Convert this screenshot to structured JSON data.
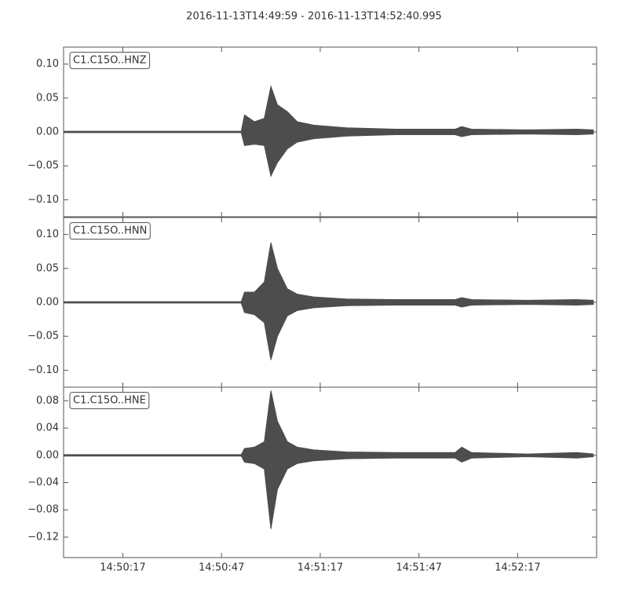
{
  "chart_data": [
    {
      "type": "band",
      "title": "2016-11-13T14:49:59  -  2016-11-13T14:52:40.995",
      "label": "C1.C15O..HNZ",
      "color": "#4d4d4d",
      "xlim": [
        "14:49:59",
        "14:52:40.995"
      ],
      "x": [
        "14:49:59",
        "14:50:30",
        "14:50:53",
        "14:50:54",
        "14:50:57",
        "14:51:00",
        "14:51:02",
        "14:51:04",
        "14:51:07",
        "14:51:10",
        "14:51:15",
        "14:51:25",
        "14:51:40",
        "14:51:58",
        "14:52:00",
        "14:52:03",
        "14:52:20",
        "14:52:35",
        "14:52:40"
      ],
      "upper": [
        0.001,
        0.001,
        0.001,
        0.025,
        0.015,
        0.02,
        0.067,
        0.04,
        0.03,
        0.015,
        0.01,
        0.006,
        0.004,
        0.004,
        0.008,
        0.004,
        0.003,
        0.004,
        0.003
      ],
      "lower": [
        -0.001,
        -0.001,
        -0.001,
        -0.02,
        -0.018,
        -0.02,
        -0.065,
        -0.045,
        -0.025,
        -0.015,
        -0.01,
        -0.006,
        -0.004,
        -0.004,
        -0.007,
        -0.004,
        -0.003,
        -0.004,
        -0.003
      ],
      "ylim": [
        -0.125,
        0.125
      ],
      "yticks": [
        {
          "value": 0.1,
          "label": "0.10"
        },
        {
          "value": 0.05,
          "label": "0.05"
        },
        {
          "value": 0,
          "label": "0.00"
        },
        {
          "value": -0.05,
          "label": "−0.05"
        },
        {
          "value": -0.1,
          "label": "−0.10"
        }
      ]
    },
    {
      "type": "band",
      "label": "C1.C15O..HNN",
      "color": "#4d4d4d",
      "xlim": [
        "14:49:59",
        "14:52:40.995"
      ],
      "x": [
        "14:49:59",
        "14:50:30",
        "14:50:53",
        "14:50:54",
        "14:50:57",
        "14:51:00",
        "14:51:02",
        "14:51:04",
        "14:51:07",
        "14:51:10",
        "14:51:15",
        "14:51:25",
        "14:51:40",
        "14:51:58",
        "14:52:00",
        "14:52:03",
        "14:52:20",
        "14:52:35",
        "14:52:40"
      ],
      "upper": [
        0.001,
        0.001,
        0.001,
        0.015,
        0.015,
        0.03,
        0.088,
        0.05,
        0.02,
        0.012,
        0.008,
        0.005,
        0.004,
        0.004,
        0.007,
        0.004,
        0.003,
        0.004,
        0.003
      ],
      "lower": [
        -0.001,
        -0.001,
        -0.001,
        -0.015,
        -0.018,
        -0.03,
        -0.085,
        -0.05,
        -0.02,
        -0.012,
        -0.008,
        -0.005,
        -0.004,
        -0.004,
        -0.007,
        -0.004,
        -0.003,
        -0.004,
        -0.003
      ],
      "ylim": [
        -0.125,
        0.125
      ],
      "yticks": [
        {
          "value": 0.1,
          "label": "0.10"
        },
        {
          "value": 0.05,
          "label": "0.05"
        },
        {
          "value": 0,
          "label": "0.00"
        },
        {
          "value": -0.05,
          "label": "−0.05"
        },
        {
          "value": -0.1,
          "label": "−0.10"
        }
      ]
    },
    {
      "type": "band",
      "label": "C1.C15O..HNE",
      "color": "#4d4d4d",
      "xlim": [
        "14:49:59",
        "14:52:40.995"
      ],
      "x": [
        "14:49:59",
        "14:50:30",
        "14:50:53",
        "14:50:54",
        "14:50:57",
        "14:51:00",
        "14:51:02",
        "14:51:04",
        "14:51:07",
        "14:51:10",
        "14:51:15",
        "14:51:25",
        "14:51:40",
        "14:51:58",
        "14:52:00",
        "14:52:03",
        "14:52:20",
        "14:52:35",
        "14:52:40"
      ],
      "upper": [
        0.001,
        0.001,
        0.001,
        0.01,
        0.012,
        0.02,
        0.095,
        0.05,
        0.02,
        0.012,
        0.008,
        0.005,
        0.004,
        0.004,
        0.012,
        0.004,
        0.002,
        0.004,
        0.002
      ],
      "lower": [
        -0.001,
        -0.001,
        -0.001,
        -0.01,
        -0.012,
        -0.02,
        -0.108,
        -0.05,
        -0.02,
        -0.012,
        -0.008,
        -0.005,
        -0.004,
        -0.004,
        -0.01,
        -0.004,
        -0.002,
        -0.004,
        -0.002
      ],
      "ylim": [
        -0.15,
        0.1
      ],
      "yticks": [
        {
          "value": 0.08,
          "label": "0.08"
        },
        {
          "value": 0.04,
          "label": "0.04"
        },
        {
          "value": 0,
          "label": "0.00"
        },
        {
          "value": -0.04,
          "label": "−0.04"
        },
        {
          "value": -0.08,
          "label": "−0.08"
        },
        {
          "value": -0.12,
          "label": "−0.12"
        }
      ],
      "xticks": [
        "14:50:17",
        "14:50:47",
        "14:51:17",
        "14:51:47",
        "14:52:17"
      ]
    }
  ]
}
